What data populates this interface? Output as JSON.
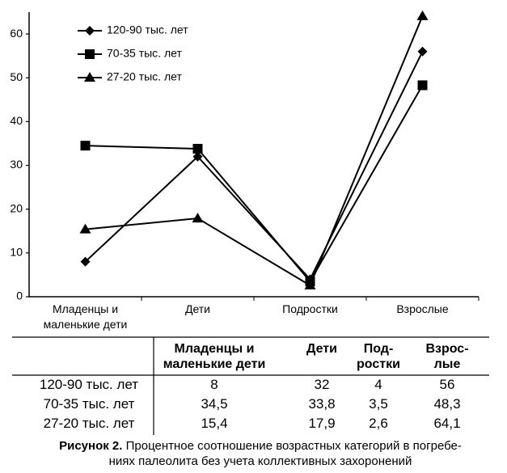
{
  "chart_data": {
    "type": "line",
    "categories": [
      "Младенцы и маленькие дети",
      "Дети",
      "Подростки",
      "Взрослые"
    ],
    "series": [
      {
        "name": "120-90 тыс. лет",
        "color": "#000000",
        "marker": "diamond",
        "values": [
          8,
          32,
          4,
          56
        ]
      },
      {
        "name": "70-35 тыс. лет",
        "color": "#000000",
        "marker": "square",
        "values": [
          34.5,
          33.8,
          3.5,
          48.3
        ]
      },
      {
        "name": "27-20 тыс. лет",
        "color": "#000000",
        "marker": "triangle",
        "values": [
          15.4,
          17.9,
          2.6,
          64.1
        ]
      }
    ],
    "ylim": [
      0,
      65
    ],
    "yticks": [
      0,
      10,
      20,
      30,
      40,
      50,
      60
    ],
    "grid": false,
    "legend": "upper-left"
  },
  "table": {
    "columns": [
      "Младенцы и\nмаленькие дети",
      "Дети",
      "Под-\nростки",
      "Взрос-\nлые"
    ],
    "rows": [
      [
        "120-90 тыс. лет",
        "8",
        "32",
        "4",
        "56"
      ],
      [
        "70-35 тыс. лет",
        "34,5",
        "33,8",
        "3,5",
        "48,3"
      ],
      [
        "27-20 тыс. лет",
        "15,4",
        "17,9",
        "2,6",
        "64,1"
      ]
    ]
  },
  "caption": {
    "label": "Рисунок 2.",
    "text": "Процентное соотношение возрастных категорий в погребе-\nниях палеолита без учета коллективных захоронений"
  }
}
